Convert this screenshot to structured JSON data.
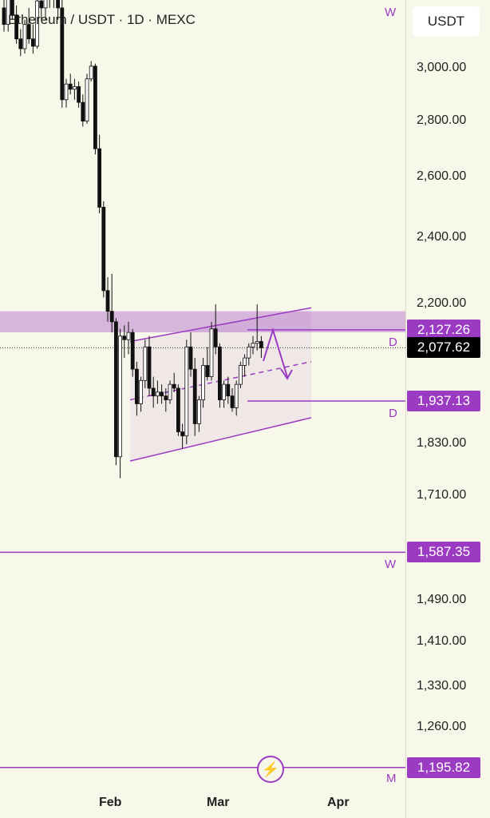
{
  "header": {
    "title": "Ethereum / USDT · 1D · MEXC",
    "currency_button": "USDT"
  },
  "price_scale": {
    "ticks": [
      "3,000.00",
      "2,800.00",
      "2,600.00",
      "2,400.00",
      "2,200.00",
      "1,830.00",
      "1,710.00",
      "1,490.00",
      "1,410.00",
      "1,330.00",
      "1,260.00"
    ],
    "tick_values": [
      3000,
      2800,
      2600,
      2400,
      2200,
      1830,
      1710,
      1490,
      1410,
      1330,
      1260
    ]
  },
  "badges": [
    {
      "label": "2,127.26",
      "value": 2127.26,
      "color": "#9b3bc2"
    },
    {
      "label": "2,077.62",
      "value": 2077.62,
      "color": "#000000"
    },
    {
      "label": "1,937.13",
      "value": 1937.13,
      "color": "#9b3bc2"
    },
    {
      "label": "1,587.35",
      "value": 1587.35,
      "color": "#9b3bc2"
    },
    {
      "label": "1,195.82",
      "value": 1195.82,
      "color": "#9b3bc2"
    }
  ],
  "level_labels": {
    "w_top": "W",
    "d1": "D",
    "d2": "D",
    "w2": "W",
    "m": "M"
  },
  "time_axis": [
    "Feb",
    "Mar",
    "Apr"
  ],
  "colors": {
    "accent": "#9b3bc2",
    "background": "#f7f7ea"
  },
  "candles": [
    [
      3250,
      3300,
      3150,
      3180
    ],
    [
      3180,
      3320,
      3150,
      3300
    ],
    [
      3300,
      3350,
      3200,
      3220
    ],
    [
      3220,
      3260,
      3100,
      3120
    ],
    [
      3120,
      3160,
      3050,
      3080
    ],
    [
      3080,
      3200,
      3060,
      3180
    ],
    [
      3180,
      3250,
      3100,
      3120
    ],
    [
      3120,
      3180,
      3060,
      3090
    ],
    [
      3090,
      3300,
      3080,
      3280
    ],
    [
      3280,
      3350,
      3200,
      3250
    ],
    [
      3250,
      3400,
      3200,
      3350
    ],
    [
      3350,
      3400,
      3250,
      3300
    ],
    [
      3300,
      3380,
      3250,
      3320
    ],
    [
      3320,
      3350,
      3200,
      3250
    ],
    [
      3250,
      3300,
      2850,
      2880
    ],
    [
      2880,
      2960,
      2850,
      2940
    ],
    [
      2940,
      2980,
      2900,
      2920
    ],
    [
      2920,
      2960,
      2880,
      2930
    ],
    [
      2930,
      2950,
      2850,
      2870
    ],
    [
      2870,
      2900,
      2780,
      2800
    ],
    [
      2800,
      2980,
      2790,
      2960
    ],
    [
      2960,
      3030,
      2950,
      3010
    ],
    [
      3010,
      3020,
      2680,
      2700
    ],
    [
      2700,
      2750,
      2480,
      2500
    ],
    [
      2500,
      2520,
      2220,
      2240
    ],
    [
      2240,
      2280,
      2150,
      2180
    ],
    [
      2180,
      2290,
      2120,
      2150
    ],
    [
      2150,
      2160,
      1780,
      1800
    ],
    [
      1800,
      2130,
      1750,
      2110
    ],
    [
      2110,
      2140,
      2050,
      2100
    ],
    [
      2100,
      2150,
      2060,
      2120
    ],
    [
      2120,
      2130,
      2000,
      2020
    ],
    [
      2020,
      2040,
      1900,
      1930
    ],
    [
      1930,
      2000,
      1910,
      1990
    ],
    [
      1990,
      2100,
      1970,
      2080
    ],
    [
      2080,
      2110,
      1950,
      1970
    ],
    [
      1970,
      2000,
      1920,
      1950
    ],
    [
      1950,
      1990,
      1930,
      1960
    ],
    [
      1960,
      1980,
      1930,
      1950
    ],
    [
      1950,
      1970,
      1910,
      1940
    ],
    [
      1940,
      1990,
      1930,
      1980
    ],
    [
      1980,
      2010,
      1960,
      1970
    ],
    [
      1970,
      1980,
      1850,
      1860
    ],
    [
      1860,
      1880,
      1820,
      1850
    ],
    [
      1850,
      2100,
      1830,
      2080
    ],
    [
      2080,
      2120,
      2000,
      2020
    ],
    [
      2020,
      2050,
      1850,
      1880
    ],
    [
      1880,
      1950,
      1860,
      1940
    ],
    [
      1940,
      2050,
      1920,
      2030
    ],
    [
      2030,
      2080,
      1990,
      2000
    ],
    [
      2000,
      2150,
      1990,
      2130
    ],
    [
      2130,
      2200,
      2060,
      2080
    ],
    [
      2080,
      2090,
      1920,
      1940
    ],
    [
      1940,
      1990,
      1920,
      1980
    ],
    [
      1980,
      2000,
      1930,
      1950
    ],
    [
      1950,
      1970,
      1910,
      1920
    ],
    [
      1920,
      1990,
      1900,
      1980
    ],
    [
      1980,
      2040,
      1970,
      2030
    ],
    [
      2030,
      2060,
      2000,
      2050
    ],
    [
      2050,
      2090,
      2030,
      2080
    ],
    [
      2080,
      2110,
      2060,
      2090
    ],
    [
      2090,
      2200,
      2070,
      2095
    ],
    [
      2095,
      2110,
      2050,
      2077.62
    ]
  ]
}
